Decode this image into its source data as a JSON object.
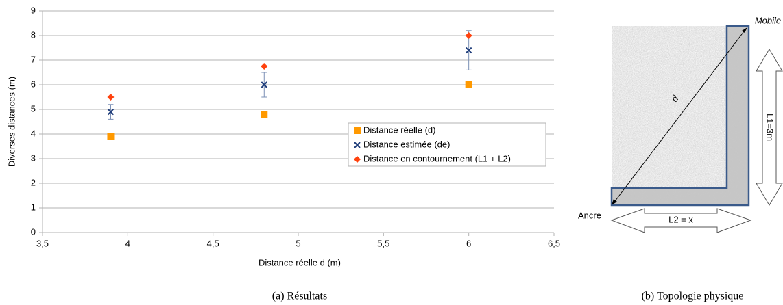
{
  "chart_data": {
    "type": "scatter",
    "x_label": "Distance réelle d (m)",
    "y_label": "Diverses distances (m)",
    "x": [
      3.9,
      4.8,
      6
    ],
    "series": [
      {
        "name": "Distance réelle (d)",
        "color": "#ff9900",
        "marker": "square",
        "values": [
          3.9,
          4.8,
          6
        ]
      },
      {
        "name": "Distance estimée (de)",
        "color": "#1f3d7a",
        "marker": "cross",
        "values": [
          4.9,
          6.0,
          7.4
        ],
        "errors": [
          0.3,
          0.5,
          0.8
        ]
      },
      {
        "name": "Distance en contournement (L1 + L2)",
        "color": "#ff420e",
        "marker": "diamond",
        "values": [
          5.5,
          6.75,
          8.0
        ]
      }
    ],
    "xlim": [
      3.5,
      6.5
    ],
    "xticks": [
      {
        "value": 3.5,
        "label": "3,5"
      },
      4,
      {
        "value": 4.5,
        "label": "4,5"
      },
      5,
      {
        "value": 5.5,
        "label": "5,5"
      },
      6,
      {
        "value": 6.5,
        "label": "6,5"
      }
    ],
    "ylim": [
      0,
      9
    ],
    "yticks": [
      0,
      1,
      2,
      3,
      4,
      5,
      6,
      7,
      8,
      9
    ],
    "grid": true,
    "legend": "right"
  },
  "diagram": {
    "mobile": "Mobile",
    "anchor": "Ancre",
    "distance": "d",
    "l1": "L1=3m",
    "l2": "L2 = x"
  },
  "captions": {
    "a": "(a) Résultats",
    "b": "(b) Topologie physique"
  }
}
